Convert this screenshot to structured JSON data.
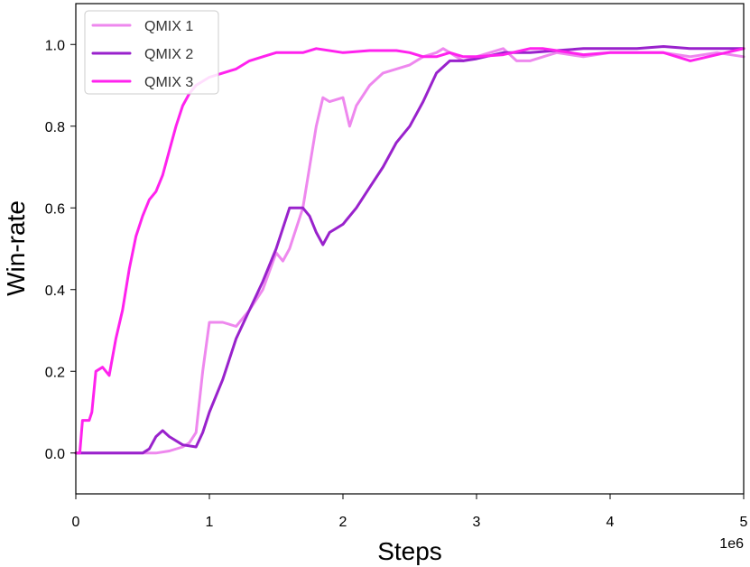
{
  "chart_data": {
    "type": "line",
    "title": "",
    "xlabel": "Steps",
    "ylabel": "Win-rate",
    "x_multiplier_label": "1e6",
    "xlim": [
      0,
      5
    ],
    "ylim": [
      -0.1,
      1.1
    ],
    "xticks": [
      0,
      1,
      2,
      3,
      4,
      5
    ],
    "xtick_labels": [
      "0",
      "1",
      "2",
      "3",
      "4",
      "5"
    ],
    "yticks": [
      0.0,
      0.2,
      0.4,
      0.6,
      0.8,
      1.0
    ],
    "ytick_labels": [
      "0.0",
      "0.2",
      "0.4",
      "0.6",
      "0.8",
      "1.0"
    ],
    "grid": false,
    "legend_position": "top-left",
    "series": [
      {
        "name": "QMIX 1",
        "color": "#ee88ee",
        "points": [
          [
            0,
            0
          ],
          [
            0.5,
            0
          ],
          [
            0.6,
            0
          ],
          [
            0.7,
            0.005
          ],
          [
            0.8,
            0.015
          ],
          [
            0.85,
            0.025
          ],
          [
            0.9,
            0.05
          ],
          [
            0.95,
            0.2
          ],
          [
            1.0,
            0.32
          ],
          [
            1.1,
            0.32
          ],
          [
            1.2,
            0.31
          ],
          [
            1.3,
            0.35
          ],
          [
            1.4,
            0.4
          ],
          [
            1.5,
            0.49
          ],
          [
            1.55,
            0.47
          ],
          [
            1.6,
            0.5
          ],
          [
            1.7,
            0.6
          ],
          [
            1.75,
            0.7
          ],
          [
            1.8,
            0.8
          ],
          [
            1.85,
            0.87
          ],
          [
            1.9,
            0.86
          ],
          [
            2.0,
            0.87
          ],
          [
            2.05,
            0.8
          ],
          [
            2.1,
            0.85
          ],
          [
            2.2,
            0.9
          ],
          [
            2.3,
            0.93
          ],
          [
            2.4,
            0.94
          ],
          [
            2.5,
            0.95
          ],
          [
            2.6,
            0.97
          ],
          [
            2.7,
            0.98
          ],
          [
            2.75,
            0.99
          ],
          [
            2.8,
            0.98
          ],
          [
            2.9,
            0.96
          ],
          [
            3.0,
            0.97
          ],
          [
            3.1,
            0.98
          ],
          [
            3.2,
            0.99
          ],
          [
            3.3,
            0.96
          ],
          [
            3.4,
            0.96
          ],
          [
            3.5,
            0.97
          ],
          [
            3.6,
            0.98
          ],
          [
            3.8,
            0.97
          ],
          [
            4.0,
            0.98
          ],
          [
            4.2,
            0.98
          ],
          [
            4.4,
            0.98
          ],
          [
            4.6,
            0.97
          ],
          [
            4.8,
            0.98
          ],
          [
            5.0,
            0.97
          ]
        ]
      },
      {
        "name": "QMIX 2",
        "color": "#9922cc",
        "points": [
          [
            0,
            0
          ],
          [
            0.5,
            0
          ],
          [
            0.55,
            0.01
          ],
          [
            0.6,
            0.04
          ],
          [
            0.65,
            0.055
          ],
          [
            0.7,
            0.04
          ],
          [
            0.8,
            0.02
          ],
          [
            0.9,
            0.015
          ],
          [
            0.95,
            0.05
          ],
          [
            1.0,
            0.1
          ],
          [
            1.1,
            0.18
          ],
          [
            1.2,
            0.28
          ],
          [
            1.3,
            0.35
          ],
          [
            1.4,
            0.42
          ],
          [
            1.5,
            0.5
          ],
          [
            1.55,
            0.55
          ],
          [
            1.6,
            0.6
          ],
          [
            1.7,
            0.6
          ],
          [
            1.75,
            0.58
          ],
          [
            1.8,
            0.54
          ],
          [
            1.85,
            0.51
          ],
          [
            1.9,
            0.54
          ],
          [
            2.0,
            0.56
          ],
          [
            2.1,
            0.6
          ],
          [
            2.2,
            0.65
          ],
          [
            2.3,
            0.7
          ],
          [
            2.4,
            0.76
          ],
          [
            2.5,
            0.8
          ],
          [
            2.6,
            0.86
          ],
          [
            2.7,
            0.93
          ],
          [
            2.8,
            0.96
          ],
          [
            2.9,
            0.96
          ],
          [
            3.0,
            0.965
          ],
          [
            3.2,
            0.98
          ],
          [
            3.4,
            0.98
          ],
          [
            3.6,
            0.985
          ],
          [
            3.8,
            0.99
          ],
          [
            4.0,
            0.99
          ],
          [
            4.2,
            0.99
          ],
          [
            4.4,
            0.995
          ],
          [
            4.6,
            0.99
          ],
          [
            4.8,
            0.99
          ],
          [
            5.0,
            0.99
          ]
        ]
      },
      {
        "name": "QMIX 3",
        "color": "#ff22ee",
        "points": [
          [
            0,
            0
          ],
          [
            0.03,
            0
          ],
          [
            0.05,
            0.08
          ],
          [
            0.1,
            0.08
          ],
          [
            0.12,
            0.1
          ],
          [
            0.15,
            0.2
          ],
          [
            0.2,
            0.21
          ],
          [
            0.25,
            0.19
          ],
          [
            0.3,
            0.28
          ],
          [
            0.35,
            0.35
          ],
          [
            0.4,
            0.45
          ],
          [
            0.45,
            0.53
          ],
          [
            0.5,
            0.58
          ],
          [
            0.55,
            0.62
          ],
          [
            0.6,
            0.64
          ],
          [
            0.65,
            0.68
          ],
          [
            0.7,
            0.74
          ],
          [
            0.75,
            0.8
          ],
          [
            0.8,
            0.85
          ],
          [
            0.85,
            0.88
          ],
          [
            0.9,
            0.9
          ],
          [
            1.0,
            0.92
          ],
          [
            1.1,
            0.93
          ],
          [
            1.2,
            0.94
          ],
          [
            1.3,
            0.96
          ],
          [
            1.4,
            0.97
          ],
          [
            1.5,
            0.98
          ],
          [
            1.7,
            0.98
          ],
          [
            1.8,
            0.99
          ],
          [
            2.0,
            0.98
          ],
          [
            2.2,
            0.985
          ],
          [
            2.4,
            0.985
          ],
          [
            2.5,
            0.98
          ],
          [
            2.6,
            0.97
          ],
          [
            2.7,
            0.97
          ],
          [
            2.8,
            0.98
          ],
          [
            2.9,
            0.97
          ],
          [
            3.0,
            0.97
          ],
          [
            3.2,
            0.975
          ],
          [
            3.4,
            0.99
          ],
          [
            3.5,
            0.99
          ],
          [
            3.6,
            0.985
          ],
          [
            3.8,
            0.975
          ],
          [
            4.0,
            0.98
          ],
          [
            4.2,
            0.98
          ],
          [
            4.4,
            0.98
          ],
          [
            4.6,
            0.96
          ],
          [
            4.8,
            0.975
          ],
          [
            5.0,
            0.99
          ]
        ]
      }
    ]
  }
}
